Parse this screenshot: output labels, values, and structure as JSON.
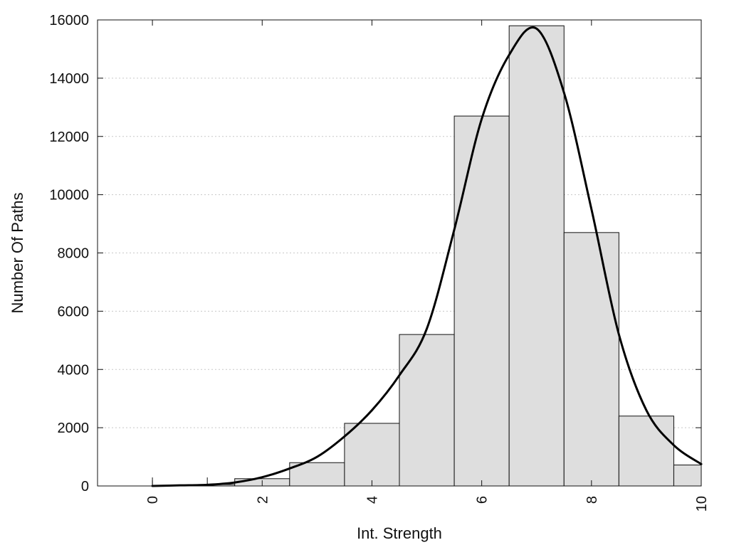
{
  "chart_data": {
    "type": "bar",
    "title": "",
    "xlabel": "Int. Strength",
    "ylabel": "Number Of Paths",
    "xlim": [
      -1,
      10
    ],
    "ylim": [
      0,
      16000
    ],
    "x_ticks": [
      "0",
      "2",
      "4",
      "6",
      "8",
      "10"
    ],
    "y_ticks": [
      "0",
      "2000",
      "4000",
      "6000",
      "8000",
      "10000",
      "12000",
      "14000",
      "16000"
    ],
    "grid": "horizontal dotted",
    "bins": [
      {
        "x0": 0,
        "x1": 1,
        "count": 0
      },
      {
        "x0": 1,
        "x1": 1.5,
        "count": 50
      },
      {
        "x0": 1.5,
        "x1": 2.5,
        "count": 250
      },
      {
        "x0": 2.5,
        "x1": 3.5,
        "count": 800
      },
      {
        "x0": 3.5,
        "x1": 4.5,
        "count": 2150
      },
      {
        "x0": 4.5,
        "x1": 5.5,
        "count": 5200
      },
      {
        "x0": 5.5,
        "x1": 6.5,
        "count": 12700
      },
      {
        "x0": 6.5,
        "x1": 7.5,
        "count": 15800
      },
      {
        "x0": 7.5,
        "x1": 8.5,
        "count": 8700
      },
      {
        "x0": 8.5,
        "x1": 9.5,
        "count": 2400
      },
      {
        "x0": 9.5,
        "x1": 10,
        "count": 720
      }
    ],
    "curve": {
      "x": [
        0,
        0.5,
        1,
        1.5,
        2,
        2.5,
        3,
        3.5,
        4,
        4.5,
        5,
        5.5,
        6,
        6.5,
        7,
        7.5,
        8,
        8.5,
        9,
        9.5,
        10
      ],
      "y": [
        0,
        20,
        40,
        120,
        300,
        600,
        1000,
        1700,
        2600,
        3800,
        5400,
        8800,
        12600,
        14800,
        15700,
        13500,
        9500,
        5200,
        2600,
        1400,
        750
      ]
    },
    "colors": {
      "bar_fill": "#dedede",
      "bar_stroke": "#111111",
      "curve": "#000000",
      "grid": "#c8c8c8"
    }
  }
}
